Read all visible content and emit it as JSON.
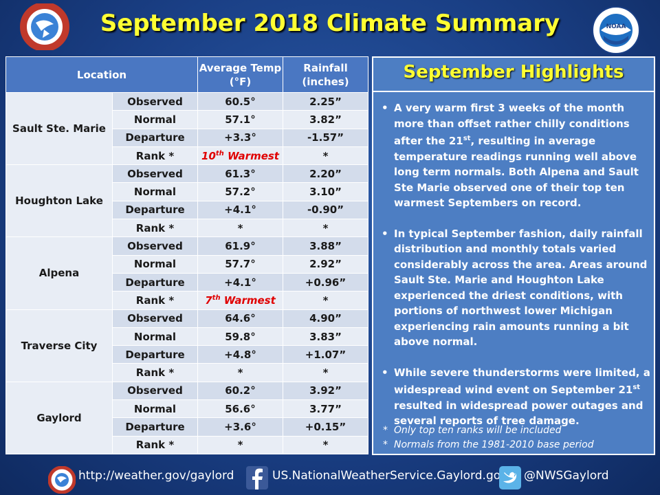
{
  "title": "September 2018 Climate Summary",
  "logos": {
    "nws_ring_text": "NATIONAL WEATHER SERVICE",
    "noaa_text": "NOAA",
    "noaa_ring_text": "NATIONAL OCEANIC AND ATMOSPHERIC ADMINISTRATION"
  },
  "table": {
    "headers": {
      "location": "Location",
      "avg_temp": "Average Temp (°F)",
      "rainfall": "Rainfall (inches)"
    },
    "rows": [
      {
        "location": "Sault Ste. Marie",
        "labels": [
          "Observed",
          "Normal",
          "Departure",
          "Rank *"
        ],
        "temp": [
          "60.5°",
          "57.1°",
          "+3.3°",
          "10th Warmest"
        ],
        "rain": [
          "2.25”",
          "3.82”",
          "-1.57”",
          "*"
        ]
      },
      {
        "location": "Houghton Lake",
        "labels": [
          "Observed",
          "Normal",
          "Departure",
          "Rank *"
        ],
        "temp": [
          "61.3°",
          "57.2°",
          "+4.1°",
          "*"
        ],
        "rain": [
          "2.20”",
          "3.10”",
          "-0.90”",
          "*"
        ]
      },
      {
        "location": "Alpena",
        "labels": [
          "Observed",
          "Normal",
          "Departure",
          "Rank *"
        ],
        "temp": [
          "61.9°",
          "57.7°",
          "+4.1°",
          "7th Warmest"
        ],
        "rain": [
          "3.88”",
          "2.92”",
          "+0.96”",
          "*"
        ]
      },
      {
        "location": "Traverse City",
        "labels": [
          "Observed",
          "Normal",
          "Departure",
          "Rank *"
        ],
        "temp": [
          "64.6°",
          "59.8°",
          "+4.8°",
          "*"
        ],
        "rain": [
          "4.90”",
          "3.83”",
          "+1.07”",
          "*"
        ]
      },
      {
        "location": "Gaylord",
        "labels": [
          "Observed",
          "Normal",
          "Departure",
          "Rank *"
        ],
        "temp": [
          "60.2°",
          "56.6°",
          "+3.6°",
          "*"
        ],
        "rain": [
          "3.92”",
          "3.77”",
          "+0.15”",
          "*"
        ]
      }
    ]
  },
  "highlights": {
    "title": "September Highlights",
    "bullets": [
      "A very warm first 3 weeks of the month more than offset rather chilly conditions after the 21st, resulting in average temperature readings running well above long term normals. Both Alpena and Sault Ste Marie observed one of their top ten warmest Septembers on record.",
      "In typical September fashion, daily rainfall distribution and monthly totals varied considerably across the area.  Areas around Sault Ste. Marie and Houghton Lake experienced the driest conditions, with portions of northwest lower Michigan experiencing rain amounts running a bit above normal.",
      "While severe thunderstorms were limited, a widespread wind event on September 21st resulted in widespread power outages and several reports of tree damage."
    ],
    "notes": [
      "Only top ten ranks will be included",
      "Normals from the 1981-2010 base period"
    ]
  },
  "footer": {
    "website": "http://weather.gov/gaylord",
    "facebook": "US.NationalWeatherService.Gaylord.gov",
    "twitter": "@NWSGaylord"
  }
}
